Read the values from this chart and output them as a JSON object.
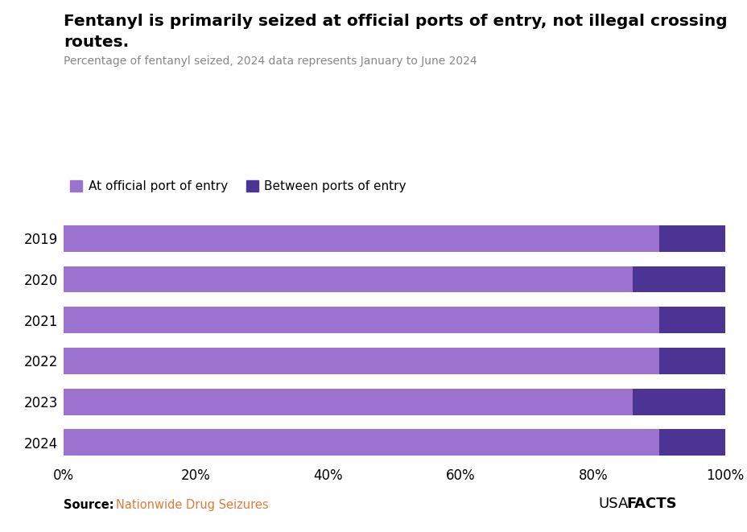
{
  "years": [
    "2019",
    "2020",
    "2021",
    "2022",
    "2023",
    "2024"
  ],
  "at_port": [
    90,
    86,
    90,
    90,
    86,
    90
  ],
  "between_port": [
    10,
    14,
    10,
    10,
    14,
    10
  ],
  "color_light": "#9b72cf",
  "color_dark": "#4b3494",
  "title_line1": "Fentanyl is primarily seized at official ports of entry, not illegal crossing",
  "title_line2": "routes.",
  "subtitle": "Percentage of fentanyl seized, 2024 data represents January to June 2024",
  "legend_light": "At official port of entry",
  "legend_dark": "Between ports of entry",
  "source_label": "Source:",
  "source_link": "Nationwide Drug Seizures",
  "usa_text": "USA",
  "facts_text": "FACTS",
  "xlim": [
    0,
    100
  ],
  "xtick_labels": [
    "0%",
    "20%",
    "40%",
    "60%",
    "80%",
    "100%"
  ],
  "xtick_values": [
    0,
    20,
    40,
    60,
    80,
    100
  ],
  "bar_height": 0.65,
  "background_color": "#ffffff"
}
